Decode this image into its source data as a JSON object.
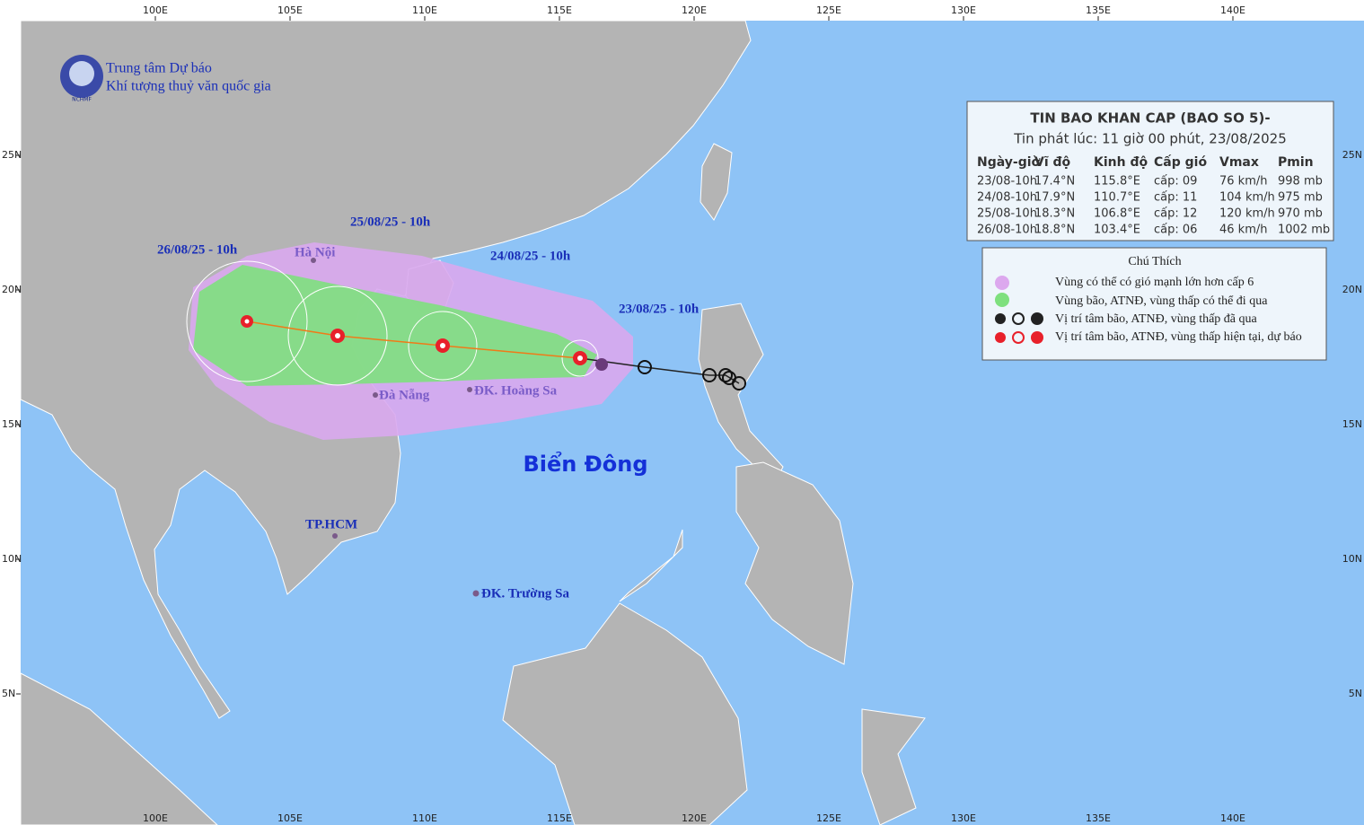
{
  "header": {
    "org_line1": "Trung tâm Dự báo",
    "org_line2": "Khí tượng thuỷ văn quốc gia",
    "logo_text": "NCHMF"
  },
  "bulletin": {
    "title": "TIN BAO KHAN CAP (BAO SO 5)-",
    "issued": "Tin phát lúc: 11 giờ 00 phút, 23/08/2025",
    "columns": [
      "Ngày-giờ",
      "Vĩ độ",
      "Kinh độ",
      "Cấp gió",
      "Vmax",
      "Pmin"
    ],
    "rows": [
      [
        "23/08-10h",
        "17.4°N",
        "115.8°E",
        "cấp: 09",
        "76 km/h",
        "998 mb"
      ],
      [
        "24/08-10h",
        "17.9°N",
        "110.7°E",
        "cấp: 11",
        "104 km/h",
        "975 mb"
      ],
      [
        "25/08-10h",
        "18.3°N",
        "106.8°E",
        "cấp: 12",
        "120 km/h",
        "970 mb"
      ],
      [
        "26/08-10h",
        "18.8°N",
        "103.4°E",
        "cấp: 06",
        "46 km/h",
        "1002 mb"
      ]
    ]
  },
  "legend": {
    "title": "Chú Thích",
    "items": [
      "Vùng có thể có gió mạnh lớn hơn cấp 6",
      "Vùng bão, ATNĐ, vùng thấp có thể đi qua",
      "Vị trí tâm bão, ATNĐ, vùng thấp đã qua",
      "Vị trí tâm bão, ATNĐ, vùng thấp hiện tại, dự báo"
    ]
  },
  "labels": {
    "sea": "Biển Đông",
    "places": [
      "Hà Nội",
      "Đà Nẵng",
      "ĐK. Hoàng Sa",
      "TP.HCM",
      "ĐK. Trường Sa"
    ],
    "dates": [
      "26/08/25 - 10h",
      "25/08/25 - 10h",
      "24/08/25 - 10h",
      "23/08/25 - 10h"
    ]
  },
  "axes": {
    "lon": [
      "100E",
      "105E",
      "110E",
      "115E",
      "120E",
      "125E",
      "130E",
      "135E",
      "140E"
    ],
    "lat": [
      "25N",
      "20N",
      "15N",
      "10N",
      "5N"
    ]
  }
}
